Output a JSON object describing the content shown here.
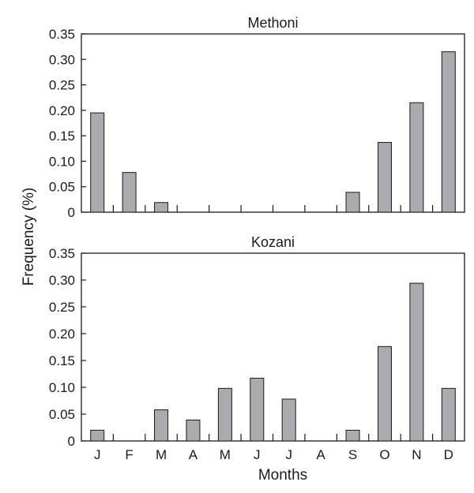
{
  "chart_data": [
    {
      "type": "bar",
      "title": "Methoni",
      "categories": [
        "J",
        "F",
        "M",
        "A",
        "M",
        "J",
        "J",
        "A",
        "S",
        "O",
        "N",
        "D"
      ],
      "values": [
        0.195,
        0.078,
        0.019,
        0,
        0,
        0,
        0,
        0,
        0.039,
        0.137,
        0.215,
        0.315
      ],
      "ylim": [
        0,
        0.35
      ],
      "yticks": [
        "0",
        "0.05",
        "0.10",
        "0.15",
        "0.20",
        "0.25",
        "0.30",
        "0.35"
      ],
      "show_x_labels": false,
      "bar_color": "#a9abae"
    },
    {
      "type": "bar",
      "title": "Kozani",
      "categories": [
        "J",
        "F",
        "M",
        "A",
        "M",
        "J",
        "J",
        "A",
        "S",
        "O",
        "N",
        "D"
      ],
      "values": [
        0.02,
        0,
        0.058,
        0.039,
        0.098,
        0.117,
        0.078,
        0,
        0.02,
        0.176,
        0.294,
        0.098
      ],
      "ylim": [
        0,
        0.35
      ],
      "yticks": [
        "0",
        "0.05",
        "0.10",
        "0.15",
        "0.20",
        "0.25",
        "0.30",
        "0.35"
      ],
      "show_x_labels": true,
      "bar_color": "#a9abae"
    }
  ],
  "labels": {
    "ylabel": "Frequency (%)",
    "xlabel": "Months"
  }
}
